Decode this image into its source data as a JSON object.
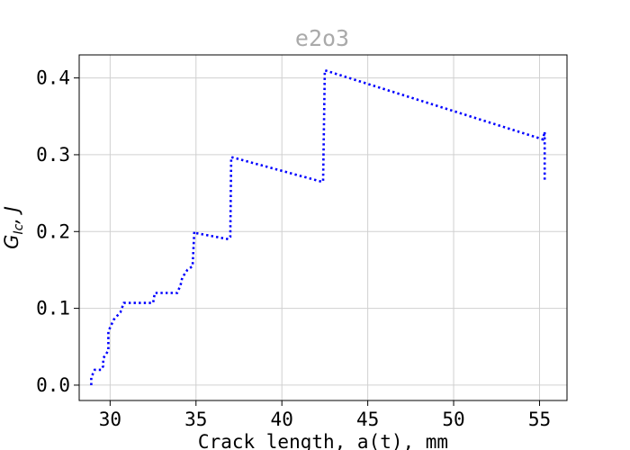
{
  "chart_data": {
    "type": "line",
    "title": "e2o3",
    "xlabel": "Crack length, a(t), mm",
    "ylabel": "G_Ic, J",
    "ylabel_main": "G",
    "ylabel_sub": "Ic",
    "ylabel_rest": ", J",
    "xlim": [
      28.2,
      56.6
    ],
    "ylim": [
      -0.02,
      0.43
    ],
    "xticks": [
      30,
      35,
      40,
      45,
      50,
      55
    ],
    "xtick_labels": [
      "30",
      "35",
      "40",
      "45",
      "50",
      "55"
    ],
    "yticks": [
      0.0,
      0.1,
      0.2,
      0.3,
      0.4
    ],
    "ytick_labels": [
      "0.0",
      "0.1",
      "0.2",
      "0.3",
      "0.4"
    ],
    "grid": true,
    "colors": {
      "series": "#0000ff",
      "title": "#aaaaaa",
      "grid": "#d0d0d0",
      "axes": "#000000"
    },
    "series": [
      {
        "line_style": "dotted",
        "x": [
          28.9,
          28.9,
          29.1,
          29.5,
          29.6,
          29.6,
          29.9,
          29.9,
          30.1,
          30.2,
          30.6,
          30.8,
          32.5,
          32.6,
          33.9,
          34.1,
          34.2,
          34.5,
          34.8,
          34.9,
          35.0,
          36.9,
          37.0,
          37.05,
          42.3,
          42.4,
          42.5,
          55.2,
          55.3,
          55.3
        ],
        "y": [
          0.0,
          0.01,
          0.02,
          0.02,
          0.025,
          0.035,
          0.045,
          0.07,
          0.08,
          0.085,
          0.095,
          0.107,
          0.107,
          0.12,
          0.12,
          0.13,
          0.14,
          0.15,
          0.155,
          0.2,
          0.198,
          0.19,
          0.193,
          0.297,
          0.265,
          0.265,
          0.41,
          0.32,
          0.33,
          0.265
        ]
      }
    ]
  }
}
